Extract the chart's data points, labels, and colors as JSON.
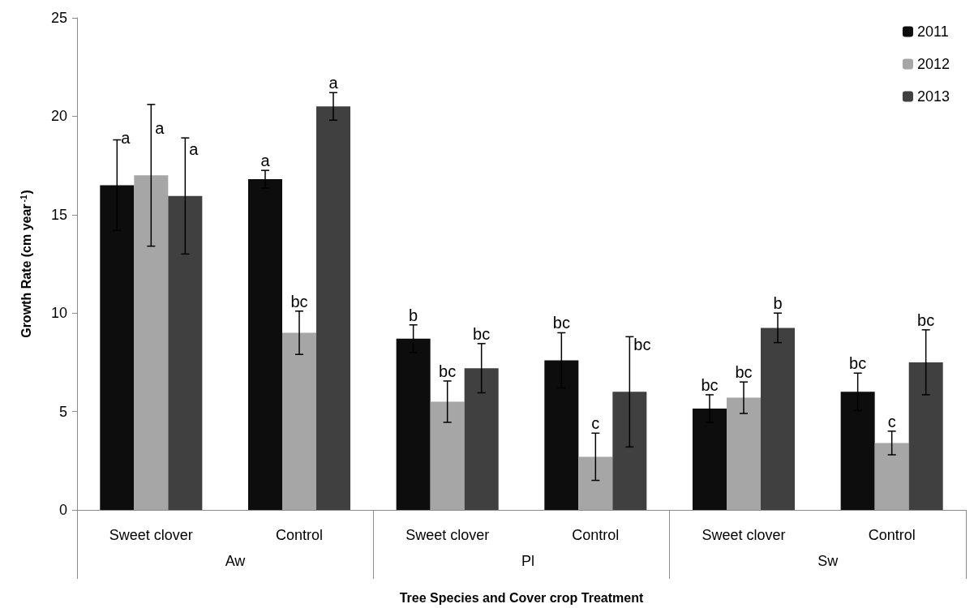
{
  "chart_data": {
    "type": "bar",
    "xlabel": "Tree Species and Cover crop Treatment",
    "ylabel": "Growth Rate (cm year$^{-1}$)",
    "categories": [
      "Sweet clover",
      "Control",
      "Sweet clover",
      "Control",
      "Sweet clover",
      "Control"
    ],
    "annotations": [
      "Aw",
      "Pl",
      "Sw"
    ],
    "series": [
      {
        "name": "2011",
        "color": "#0d0d0d",
        "values": [
          16.5,
          16.8,
          8.7,
          7.6,
          5.15,
          6.0
        ],
        "errors": [
          2.3,
          0.45,
          0.7,
          1.4,
          0.7,
          0.95
        ],
        "value_labels": [
          "a",
          "a",
          "b",
          "bc",
          "bc",
          "bc"
        ]
      },
      {
        "name": "2012",
        "color": "#a6a6a6",
        "values": [
          17.0,
          9.0,
          5.5,
          2.7,
          5.7,
          3.4
        ],
        "errors": [
          3.6,
          1.1,
          1.05,
          1.2,
          0.8,
          0.6
        ],
        "value_labels": [
          "a",
          "bc",
          "bc",
          "c",
          "bc",
          "c"
        ]
      },
      {
        "name": "2013",
        "color": "#404040",
        "values": [
          15.95,
          20.5,
          7.2,
          6.0,
          9.25,
          7.5
        ],
        "errors": [
          2.95,
          0.7,
          1.25,
          2.8,
          0.75,
          1.65
        ],
        "value_labels": [
          "a",
          "a",
          "bc",
          "bc",
          "b",
          "bc"
        ]
      }
    ],
    "ylim": [
      0,
      25
    ],
    "yticks": [
      0,
      5,
      10,
      15,
      20,
      25
    ],
    "grid": false,
    "legend": "top right"
  }
}
